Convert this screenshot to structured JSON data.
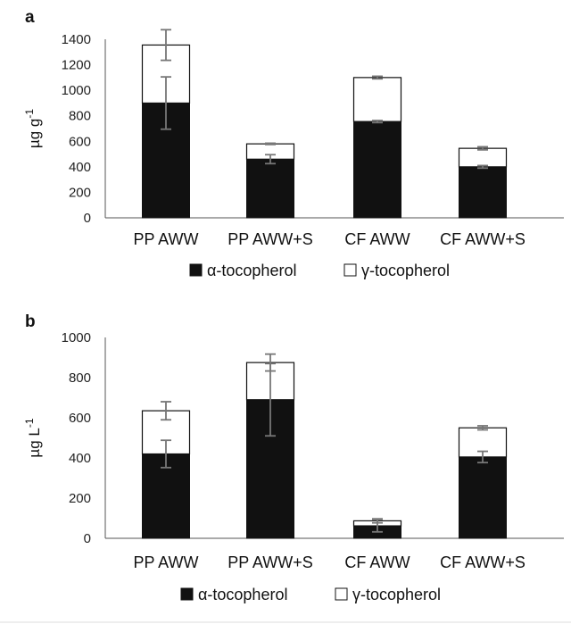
{
  "colors": {
    "alpha_fill": "#111111",
    "gamma_fill": "#ffffff",
    "bar_stroke": "#111111",
    "axis": "#555555",
    "error_bar": "#777777"
  },
  "chart_data": [
    {
      "panel_label": "a",
      "type": "bar",
      "stacked": true,
      "categories": [
        "PP AWW",
        "PP AWW+S",
        "CF AWW",
        "CF AWW+S"
      ],
      "ylabel": "µg g",
      "ylabel_sup": "-1",
      "ylim": [
        0,
        1400
      ],
      "yticks": [
        0,
        200,
        400,
        600,
        800,
        1000,
        1200,
        1400
      ],
      "grid": false,
      "legend_position": "bottom",
      "series": [
        {
          "name": "α-tocopherol",
          "values": [
            900,
            460,
            755,
            400
          ],
          "error": [
            205,
            35,
            8,
            10
          ]
        },
        {
          "name": "γ-tocopherol",
          "values": [
            455,
            120,
            345,
            145
          ],
          "error": [
            120,
            5,
            10,
            12
          ]
        }
      ]
    },
    {
      "panel_label": "b",
      "type": "bar",
      "stacked": true,
      "categories": [
        "PP AWW",
        "PP AWW+S",
        "CF AWW",
        "CF AWW+S"
      ],
      "ylabel": "µg L",
      "ylabel_sup": "-1",
      "ylim": [
        0,
        1000
      ],
      "yticks": [
        0,
        200,
        400,
        600,
        800,
        1000
      ],
      "grid": false,
      "legend_position": "bottom",
      "series": [
        {
          "name": "α-tocopherol",
          "values": [
            420,
            690,
            62,
            405
          ],
          "error": [
            68,
            180,
            30,
            28
          ]
        },
        {
          "name": "γ-tocopherol",
          "values": [
            215,
            185,
            25,
            145
          ],
          "error": [
            45,
            42,
            10,
            10
          ]
        }
      ]
    }
  ]
}
